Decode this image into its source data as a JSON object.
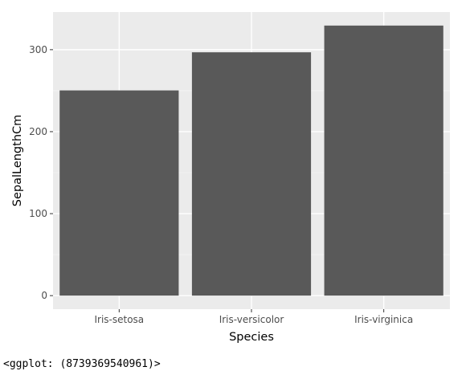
{
  "chart_data": {
    "type": "bar",
    "categories": [
      "Iris-setosa",
      "Iris-versicolor",
      "Iris-virginica"
    ],
    "values": [
      250.3,
      296.8,
      329.4
    ],
    "title": "",
    "xlabel": "Species",
    "ylabel": "SepalLengthCm",
    "ylim": [
      -16.5,
      345.9
    ],
    "yticks": [
      0,
      100,
      200,
      300
    ],
    "ytick_labels": [
      "0",
      "100",
      "200",
      "300"
    ],
    "grid": true,
    "theme": "ggplot-gray",
    "colors": {
      "panel": "#ebebeb",
      "grid_major": "#ffffff",
      "grid_minor": "#f5f5f5",
      "bar": "#595959",
      "tick": "#333333"
    }
  },
  "output_repr": "<ggplot: (8739369540961)>"
}
